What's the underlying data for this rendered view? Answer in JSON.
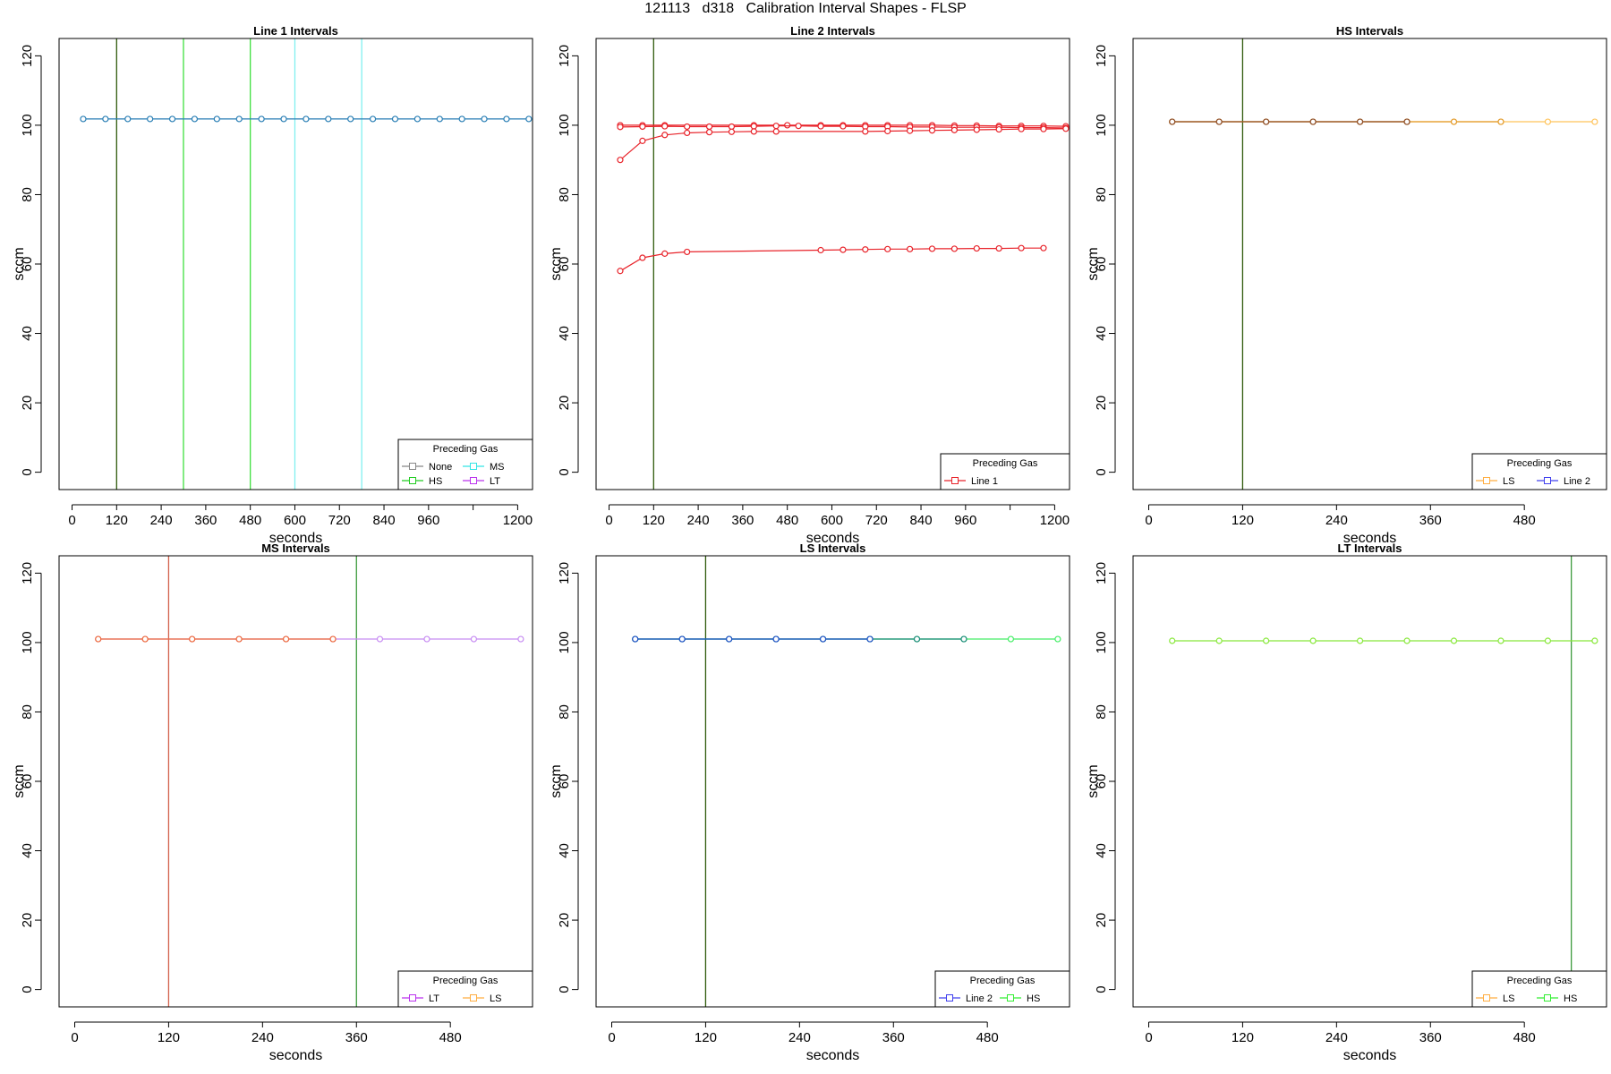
{
  "page": {
    "title": "121113   d318   Calibration Interval Shapes - FLSP"
  },
  "chart_data": [
    {
      "type": "line",
      "title": "Line 1 Intervals",
      "xlabel": "seconds",
      "ylabel": "sccm",
      "xlim": [
        -35,
        1240
      ],
      "ylim": [
        -5,
        125
      ],
      "xticks": [
        0,
        120,
        240,
        360,
        480,
        600,
        720,
        840,
        960,
        1080,
        1200
      ],
      "xtick_labels": [
        "0",
        "120",
        "240",
        "360",
        "480",
        "600",
        "720",
        "840",
        "960",
        "",
        "1200"
      ],
      "yticks": [
        0,
        20,
        40,
        60,
        80,
        100,
        120
      ],
      "legend": {
        "title": "Preceding Gas",
        "position": "bottom-right",
        "columns": 2,
        "entries": [
          {
            "label": "None",
            "color": "#888888"
          },
          {
            "label": "MS",
            "color": "#33e5e5"
          },
          {
            "label": "HS",
            "color": "#22cc22"
          },
          {
            "label": "LT",
            "color": "#bb33ee"
          }
        ]
      },
      "vlines": [
        {
          "x": 120,
          "color": "#2e5a0a"
        },
        {
          "x": 300,
          "color": "#3fe03f"
        },
        {
          "x": 480,
          "color": "#3fe03f"
        },
        {
          "x": 600,
          "color": "#80f0f0"
        },
        {
          "x": 780,
          "color": "#80f0f0"
        }
      ],
      "series": [
        {
          "color": "#2a7fb5",
          "x": [
            30,
            90,
            150,
            210,
            270,
            330,
            390,
            450,
            510,
            570,
            630,
            690,
            750,
            810,
            870,
            930,
            990,
            1050,
            1110,
            1170,
            1230
          ],
          "y": [
            101.8,
            101.8,
            101.8,
            101.8,
            101.8,
            101.8,
            101.8,
            101.8,
            101.8,
            101.8,
            101.8,
            101.8,
            101.8,
            101.8,
            101.8,
            101.8,
            101.8,
            101.8,
            101.8,
            101.8,
            101.8
          ]
        }
      ]
    },
    {
      "type": "line",
      "title": "Line 2 Intervals",
      "xlabel": "seconds",
      "ylabel": "sccm",
      "xlim": [
        -35,
        1240
      ],
      "ylim": [
        -5,
        125
      ],
      "xticks": [
        0,
        120,
        240,
        360,
        480,
        600,
        720,
        840,
        960,
        1080,
        1200
      ],
      "xtick_labels": [
        "0",
        "120",
        "240",
        "360",
        "480",
        "600",
        "720",
        "840",
        "960",
        "",
        "1200"
      ],
      "yticks": [
        0,
        20,
        40,
        60,
        80,
        100,
        120
      ],
      "legend": {
        "title": "Preceding Gas",
        "position": "bottom-right",
        "columns": 1,
        "entries": [
          {
            "label": "Line 1",
            "color": "#e8232a"
          }
        ]
      },
      "vlines": [
        {
          "x": 120,
          "color": "#2e5a0a"
        }
      ],
      "series": [
        {
          "color": "#e8232a",
          "x": [
            30,
            90,
            150,
            390,
            480,
            570,
            630,
            690,
            750,
            810,
            870,
            930,
            990,
            1050,
            1110,
            1170,
            1230
          ],
          "y": [
            100.0,
            100.0,
            100.0,
            100.0,
            100.0,
            100.0,
            100.0,
            100.0,
            100.0,
            100.0,
            100.0,
            99.9,
            99.9,
            99.8,
            99.8,
            99.8,
            99.7
          ]
        },
        {
          "color": "#e8232a",
          "x": [
            30,
            90,
            150,
            210,
            270,
            330,
            390,
            450,
            510,
            570,
            630,
            690,
            750,
            810,
            870,
            930,
            990,
            1050,
            1110,
            1170,
            1230
          ],
          "y": [
            99.5,
            99.6,
            99.7,
            99.6,
            99.6,
            99.6,
            99.7,
            99.8,
            99.8,
            99.7,
            99.7,
            99.6,
            99.6,
            99.5,
            99.5,
            99.4,
            99.4,
            99.4,
            99.3,
            99.3,
            99.2
          ]
        },
        {
          "color": "#e8232a",
          "x": [
            30,
            90,
            150,
            210,
            270,
            330,
            390,
            450,
            690,
            750,
            810,
            870,
            930,
            990,
            1050,
            1110,
            1170,
            1230
          ],
          "y": [
            90.0,
            95.5,
            97.2,
            97.8,
            98.0,
            98.1,
            98.2,
            98.2,
            98.2,
            98.3,
            98.4,
            98.5,
            98.6,
            98.7,
            98.8,
            98.9,
            98.9,
            99.0
          ]
        },
        {
          "color": "#e8232a",
          "x": [
            30,
            90,
            150,
            210,
            570,
            630,
            690,
            750,
            810,
            870,
            930,
            990,
            1050,
            1110,
            1170
          ],
          "y": [
            58.0,
            61.8,
            63.0,
            63.5,
            64.0,
            64.1,
            64.2,
            64.3,
            64.3,
            64.4,
            64.4,
            64.5,
            64.5,
            64.6,
            64.6
          ]
        }
      ]
    },
    {
      "type": "line",
      "title": "HS Intervals",
      "xlabel": "seconds",
      "ylabel": "sccm",
      "xlim": [
        -20,
        585
      ],
      "ylim": [
        -5,
        125
      ],
      "xticks": [
        0,
        120,
        240,
        360,
        480
      ],
      "xtick_labels": [
        "0",
        "120",
        "240",
        "360",
        "480"
      ],
      "yticks": [
        0,
        20,
        40,
        60,
        80,
        100,
        120
      ],
      "legend": {
        "title": "Preceding Gas",
        "position": "bottom-right",
        "columns": 2,
        "entries": [
          {
            "label": "LS",
            "color": "#ffae42"
          },
          {
            "label": "Line 2",
            "color": "#4040ee"
          }
        ]
      },
      "vlines": [
        {
          "x": 120,
          "color": "#2e5a0a"
        }
      ],
      "series": [
        {
          "color": "#ffc35a",
          "x": [
            30,
            90,
            150,
            210,
            270,
            330,
            390,
            450,
            510,
            570
          ],
          "y": [
            101.0,
            101.0,
            101.0,
            101.0,
            101.0,
            101.0,
            101.0,
            101.0,
            101.0,
            101.0
          ]
        },
        {
          "color": "#e29a2a",
          "x": [
            30,
            90,
            150,
            210,
            270,
            330,
            390,
            450
          ],
          "y": [
            101.0,
            101.0,
            101.0,
            101.0,
            101.0,
            101.0,
            101.0,
            101.0
          ]
        },
        {
          "color": "#8a4a26",
          "x": [
            30,
            90,
            150,
            210,
            270,
            330
          ],
          "y": [
            101.0,
            101.0,
            101.0,
            101.0,
            101.0,
            101.0
          ]
        }
      ]
    },
    {
      "type": "line",
      "title": "MS Intervals",
      "xlabel": "seconds",
      "ylabel": "sccm",
      "xlim": [
        -20,
        585
      ],
      "ylim": [
        -5,
        125
      ],
      "xticks": [
        0,
        120,
        240,
        360,
        480
      ],
      "xtick_labels": [
        "0",
        "120",
        "240",
        "360",
        "480"
      ],
      "yticks": [
        0,
        20,
        40,
        60,
        80,
        100,
        120
      ],
      "legend": {
        "title": "Preceding Gas",
        "position": "bottom-right",
        "columns": 2,
        "entries": [
          {
            "label": "LT",
            "color": "#bb33ee"
          },
          {
            "label": "LS",
            "color": "#ffae42"
          }
        ]
      },
      "vlines": [
        {
          "x": 120,
          "color": "#d2604a"
        },
        {
          "x": 360,
          "color": "#3c9a3c"
        }
      ],
      "series": [
        {
          "color": "#c78cf2",
          "x": [
            30,
            90,
            150,
            210,
            270,
            330,
            390,
            450,
            510,
            570
          ],
          "y": [
            101.0,
            101.0,
            101.0,
            101.0,
            101.0,
            101.0,
            101.0,
            101.0,
            101.0,
            101.0
          ]
        },
        {
          "color": "#ee6a3a",
          "x": [
            30,
            90,
            150,
            210,
            270,
            330
          ],
          "y": [
            101.0,
            101.0,
            101.0,
            101.0,
            101.0,
            101.0
          ]
        }
      ]
    },
    {
      "type": "line",
      "title": "LS Intervals",
      "xlabel": "seconds",
      "ylabel": "sccm",
      "xlim": [
        -20,
        585
      ],
      "ylim": [
        -5,
        125
      ],
      "xticks": [
        0,
        120,
        240,
        360,
        480
      ],
      "xtick_labels": [
        "0",
        "120",
        "240",
        "360",
        "480"
      ],
      "yticks": [
        0,
        20,
        40,
        60,
        80,
        100,
        120
      ],
      "legend": {
        "title": "Preceding Gas",
        "position": "bottom-right",
        "columns": 2,
        "entries": [
          {
            "label": "Line 2",
            "color": "#4040ee"
          },
          {
            "label": "HS",
            "color": "#33ee33"
          }
        ]
      },
      "vlines": [
        {
          "x": 120,
          "color": "#2e5a0a"
        }
      ],
      "series": [
        {
          "color": "#44ee66",
          "x": [
            30,
            90,
            150,
            210,
            270,
            330,
            390,
            450,
            510,
            570
          ],
          "y": [
            101.0,
            101.0,
            101.0,
            101.0,
            101.0,
            101.0,
            101.0,
            101.0,
            101.0,
            101.0
          ]
        },
        {
          "color": "#1a8a7a",
          "x": [
            30,
            90,
            150,
            210,
            270,
            330,
            390,
            450
          ],
          "y": [
            101.0,
            101.0,
            101.0,
            101.0,
            101.0,
            101.0,
            101.0,
            101.0
          ]
        },
        {
          "color": "#1f4fc9",
          "x": [
            30,
            90,
            150,
            210,
            270,
            330
          ],
          "y": [
            101.0,
            101.0,
            101.0,
            101.0,
            101.0,
            101.0
          ]
        }
      ]
    },
    {
      "type": "line",
      "title": "LT Intervals",
      "xlabel": "seconds",
      "ylabel": "sccm",
      "xlim": [
        -20,
        585
      ],
      "ylim": [
        -5,
        125
      ],
      "xticks": [
        0,
        120,
        240,
        360,
        480
      ],
      "xtick_labels": [
        "0",
        "120",
        "240",
        "360",
        "480"
      ],
      "yticks": [
        0,
        20,
        40,
        60,
        80,
        100,
        120
      ],
      "legend": {
        "title": "Preceding Gas",
        "position": "bottom-right",
        "columns": 2,
        "entries": [
          {
            "label": "LS",
            "color": "#ffae42"
          },
          {
            "label": "HS",
            "color": "#33ee33"
          }
        ]
      },
      "vlines": [
        {
          "x": 540,
          "color": "#3c9a3c"
        }
      ],
      "series": [
        {
          "color": "#88e83a",
          "x": [
            30,
            90,
            150,
            210,
            270,
            330,
            390,
            450,
            510,
            570
          ],
          "y": [
            100.5,
            100.5,
            100.5,
            100.5,
            100.5,
            100.5,
            100.5,
            100.5,
            100.5,
            100.5
          ]
        }
      ]
    }
  ]
}
